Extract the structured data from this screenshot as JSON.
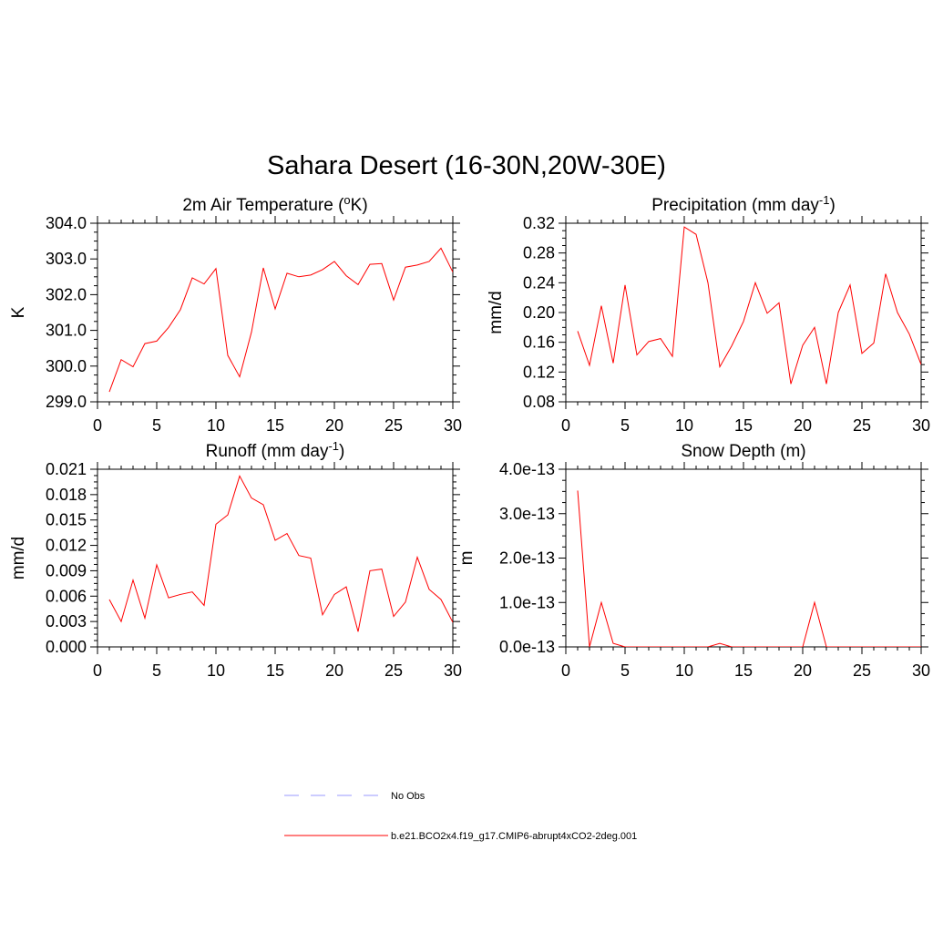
{
  "figure": {
    "title": "Sahara Desert (16-30N,20W-30E)"
  },
  "legend": {
    "items": [
      {
        "label": "No Obs",
        "color": "#9999ff",
        "dash": true
      },
      {
        "label": "b.e21.BCO2x4.f19_g17.CMIP6-abrupt4xCO2-2deg.001",
        "color": "#ff0000",
        "dash": false
      }
    ]
  },
  "chart_data": [
    {
      "type": "line",
      "title": "2m Air Temperature (",
      "title_sup": "o",
      "title_after": "K)",
      "ylabel": "K",
      "xlim": [
        0,
        30
      ],
      "ylim": [
        299.0,
        304.0
      ],
      "xticks": [
        "0",
        "5",
        "10",
        "15",
        "20",
        "25",
        "30"
      ],
      "yticks": [
        "299.0",
        "300.0",
        "301.0",
        "302.0",
        "303.0",
        "304.0"
      ],
      "series": [
        {
          "color": "#ff0000",
          "x": [
            1,
            2,
            3,
            4,
            5,
            6,
            7,
            8,
            9,
            10,
            11,
            12,
            13,
            14,
            15,
            16,
            17,
            18,
            19,
            20,
            21,
            22,
            23,
            24,
            25,
            26,
            27,
            28,
            29,
            30
          ],
          "y": [
            299.28,
            300.18,
            299.98,
            300.63,
            300.7,
            301.08,
            301.58,
            302.47,
            302.3,
            302.73,
            300.3,
            299.7,
            300.95,
            302.75,
            301.6,
            302.6,
            302.5,
            302.55,
            302.7,
            302.93,
            302.53,
            302.28,
            302.85,
            302.87,
            301.85,
            302.77,
            302.83,
            302.93,
            303.3,
            302.63
          ]
        }
      ]
    },
    {
      "type": "line",
      "title": "Precipitation (mm day",
      "title_sup": "-1",
      "title_after": ")",
      "ylabel": "mm/d",
      "xlim": [
        0,
        30
      ],
      "ylim": [
        0.08,
        0.32
      ],
      "xticks": [
        "0",
        "5",
        "10",
        "15",
        "20",
        "25",
        "30"
      ],
      "yticks": [
        "0.08",
        "0.12",
        "0.16",
        "0.20",
        "0.24",
        "0.28",
        "0.32"
      ],
      "series": [
        {
          "color": "#ff0000",
          "x": [
            1,
            2,
            3,
            4,
            5,
            6,
            7,
            8,
            9,
            10,
            11,
            12,
            13,
            14,
            15,
            16,
            17,
            18,
            19,
            20,
            21,
            22,
            23,
            24,
            25,
            26,
            27,
            28,
            29,
            30
          ],
          "y": [
            0.175,
            0.129,
            0.209,
            0.132,
            0.237,
            0.143,
            0.161,
            0.165,
            0.141,
            0.315,
            0.305,
            0.24,
            0.127,
            0.155,
            0.188,
            0.24,
            0.199,
            0.213,
            0.104,
            0.156,
            0.18,
            0.104,
            0.2,
            0.237,
            0.145,
            0.159,
            0.252,
            0.2,
            0.171,
            0.13
          ]
        }
      ]
    },
    {
      "type": "line",
      "title": "Runoff (mm day",
      "title_sup": "-1",
      "title_after": ")",
      "ylabel": "mm/d",
      "xlim": [
        0,
        30
      ],
      "ylim": [
        0.0,
        0.021
      ],
      "xticks": [
        "0",
        "5",
        "10",
        "15",
        "20",
        "25",
        "30"
      ],
      "yticks": [
        "0.000",
        "0.003",
        "0.006",
        "0.009",
        "0.012",
        "0.015",
        "0.018",
        "0.021"
      ],
      "series": [
        {
          "color": "#ff0000",
          "x": [
            1,
            2,
            3,
            4,
            5,
            6,
            7,
            8,
            9,
            10,
            11,
            12,
            13,
            14,
            15,
            16,
            17,
            18,
            19,
            20,
            21,
            22,
            23,
            24,
            25,
            26,
            27,
            28,
            29,
            30
          ],
          "y": [
            0.0056,
            0.003,
            0.0079,
            0.0034,
            0.0097,
            0.0058,
            0.0062,
            0.0065,
            0.0049,
            0.0145,
            0.0156,
            0.0202,
            0.0176,
            0.0168,
            0.0126,
            0.0134,
            0.0108,
            0.0105,
            0.0038,
            0.0062,
            0.0071,
            0.0018,
            0.009,
            0.0092,
            0.0036,
            0.0053,
            0.0106,
            0.0068,
            0.0056,
            0.0029
          ]
        }
      ]
    },
    {
      "type": "line",
      "title": "Snow Depth (m)",
      "title_sup": "",
      "title_after": "",
      "ylabel": "m",
      "xlim": [
        0,
        30
      ],
      "ylim": [
        0.0,
        4e-13
      ],
      "xticks": [
        "0",
        "5",
        "10",
        "15",
        "20",
        "25",
        "30"
      ],
      "yticks": [
        "0.0e-13",
        "1.0e-13",
        "2.0e-13",
        "3.0e-13",
        "4.0e-13"
      ],
      "series": [
        {
          "color": "#ff0000",
          "x": [
            1,
            2,
            3,
            4,
            5,
            6,
            7,
            8,
            9,
            10,
            11,
            12,
            13,
            14,
            15,
            16,
            17,
            18,
            19,
            20,
            21,
            22,
            23,
            24,
            25,
            26,
            27,
            28,
            29,
            30
          ],
          "y": [
            3.52e-13,
            0,
            1e-13,
            8e-15,
            0,
            0,
            0,
            0,
            0,
            0,
            0,
            0,
            8e-15,
            0,
            0,
            0,
            0,
            0,
            0,
            0,
            1e-13,
            0,
            0,
            0,
            0,
            0,
            0,
            0,
            0,
            0
          ]
        }
      ]
    }
  ]
}
